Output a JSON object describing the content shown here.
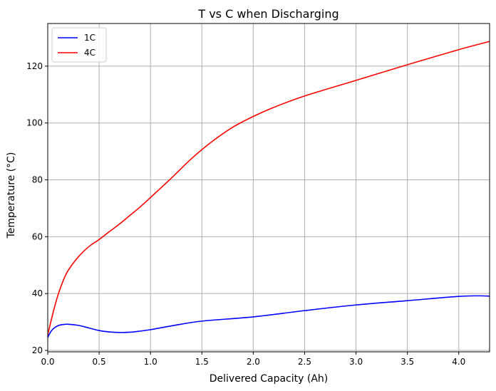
{
  "chart_data": {
    "type": "line",
    "title": "T vs C when Discharging",
    "xlabel": "Delivered Capacity (Ah)",
    "ylabel": "Temperature (°C)",
    "xlim": [
      0,
      4.3
    ],
    "ylim": [
      19.5,
      135
    ],
    "xticks": [
      0.0,
      0.5,
      1.0,
      1.5,
      2.0,
      2.5,
      3.0,
      3.5,
      4.0
    ],
    "xtick_labels": [
      "0.0",
      "0.5",
      "1.0",
      "1.5",
      "2.0",
      "2.5",
      "3.0",
      "3.5",
      "4.0"
    ],
    "yticks": [
      20,
      40,
      60,
      80,
      100,
      120
    ],
    "ytick_labels": [
      "20",
      "40",
      "60",
      "80",
      "100",
      "120"
    ],
    "grid": true,
    "legend": "top-left",
    "series": [
      {
        "name": "1C",
        "color": "#0000ff",
        "x": [
          0.0,
          0.02,
          0.05,
          0.1,
          0.15,
          0.2,
          0.3,
          0.4,
          0.5,
          0.6,
          0.7,
          0.8,
          0.9,
          1.0,
          1.2,
          1.5,
          2.0,
          2.5,
          3.0,
          3.5,
          4.0,
          4.2,
          4.3
        ],
        "y": [
          24.5,
          26.0,
          27.5,
          28.7,
          29.1,
          29.2,
          28.8,
          27.9,
          27.0,
          26.5,
          26.3,
          26.4,
          26.8,
          27.3,
          28.6,
          30.3,
          31.8,
          34.0,
          36.0,
          37.5,
          39.0,
          39.2,
          39.1
        ]
      },
      {
        "name": "4C",
        "color": "#ff0000",
        "x": [
          0.0,
          0.05,
          0.1,
          0.15,
          0.2,
          0.3,
          0.4,
          0.5,
          0.6,
          0.7,
          0.8,
          0.9,
          1.0,
          1.2,
          1.4,
          1.6,
          1.8,
          2.0,
          2.2,
          2.5,
          3.0,
          3.5,
          4.0,
          4.3
        ],
        "y": [
          25.5,
          33.0,
          39.5,
          44.5,
          48.2,
          53.0,
          56.5,
          59.0,
          61.8,
          64.5,
          67.5,
          70.5,
          73.8,
          80.5,
          87.5,
          93.5,
          98.5,
          102.3,
          105.5,
          109.5,
          115.0,
          120.5,
          125.8,
          128.7
        ]
      }
    ]
  }
}
